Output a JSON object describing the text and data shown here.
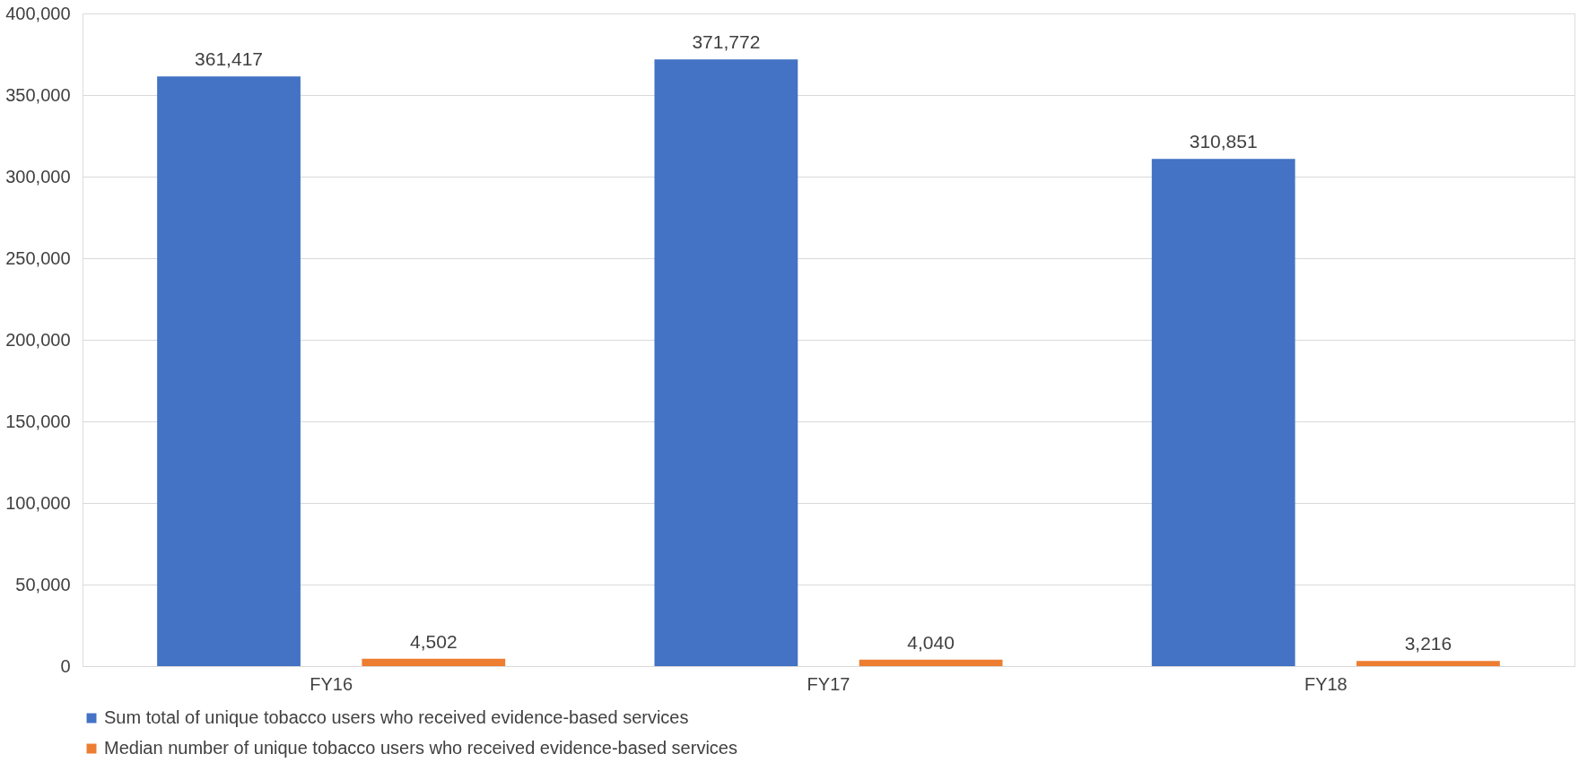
{
  "chart_data": {
    "type": "bar",
    "categories": [
      "FY16",
      "FY17",
      "FY18"
    ],
    "series": [
      {
        "name": "Sum total of unique tobacco users who received evidence-based services",
        "color": "#4472c4",
        "values": [
          361417,
          371772,
          310851
        ],
        "value_labels": [
          "361,417",
          "371,772",
          "310,851"
        ]
      },
      {
        "name": "Median number of unique tobacco users who received evidence-based services",
        "color": "#ed7d31",
        "values": [
          4502,
          4040,
          3216
        ],
        "value_labels": [
          "4,502",
          "4,040",
          "3,216"
        ]
      }
    ],
    "ylim": [
      0,
      400000
    ],
    "yticks": [
      0,
      {
        "value": 50000,
        "label": "50,000"
      },
      {
        "value": 100000,
        "label": "100,000"
      },
      {
        "value": 150000,
        "label": "150,000"
      },
      {
        "value": 200000,
        "label": "200,000"
      },
      {
        "value": 250000,
        "label": "250,000"
      },
      {
        "value": 300000,
        "label": "300,000"
      },
      {
        "value": 350000,
        "label": "350,000"
      },
      {
        "value": 400000,
        "label": "400,000"
      }
    ],
    "grid": "y",
    "legend": "bottom"
  }
}
